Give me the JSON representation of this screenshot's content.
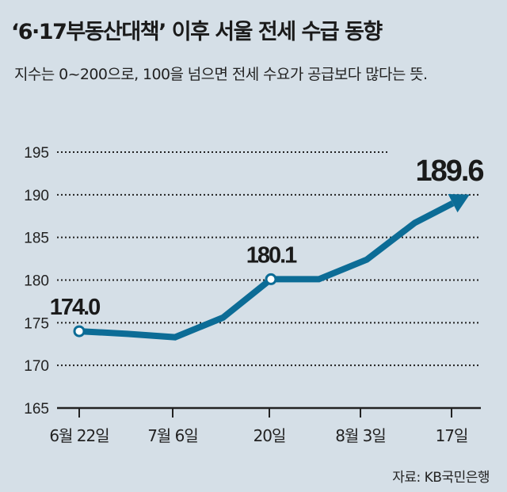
{
  "title": "‘6·17부동산대책’ 이후 서울 전세 수급 동향",
  "subtitle": "지수는 0~200으로, 100을 넘으면 전세 수요가 공급보다 많다는 뜻.",
  "source": "자료: KB국민은행",
  "colors": {
    "line": "#0c6c96",
    "background": "#d5dfe7"
  },
  "chart_data": {
    "type": "line",
    "title": "‘6·17부동산대책’ 이후 서울 전세 수급 동향",
    "xlabel": "",
    "ylabel": "",
    "ylim": [
      165,
      195
    ],
    "yticks": [
      "165",
      "170",
      "175",
      "180",
      "185",
      "190",
      "195"
    ],
    "xticks": [
      {
        "index": 0,
        "label": "6월 22일"
      },
      {
        "index": 2,
        "label": "7월 6일"
      },
      {
        "index": 4,
        "label": "20일"
      },
      {
        "index": 6,
        "label": "8월 3일"
      },
      {
        "index": 8,
        "label": "17일"
      }
    ],
    "x": [
      "6/22",
      "6/29",
      "7/6",
      "7/13",
      "7/20",
      "7/27",
      "8/3",
      "8/10",
      "8/17"
    ],
    "values": [
      174.0,
      173.7,
      173.3,
      175.6,
      180.1,
      180.1,
      182.4,
      186.7,
      189.6
    ],
    "labels": [
      {
        "index": 0,
        "text": "174.0"
      },
      {
        "index": 4,
        "text": "180.1"
      },
      {
        "index": 8,
        "text": "189.6"
      }
    ],
    "grid": true
  }
}
